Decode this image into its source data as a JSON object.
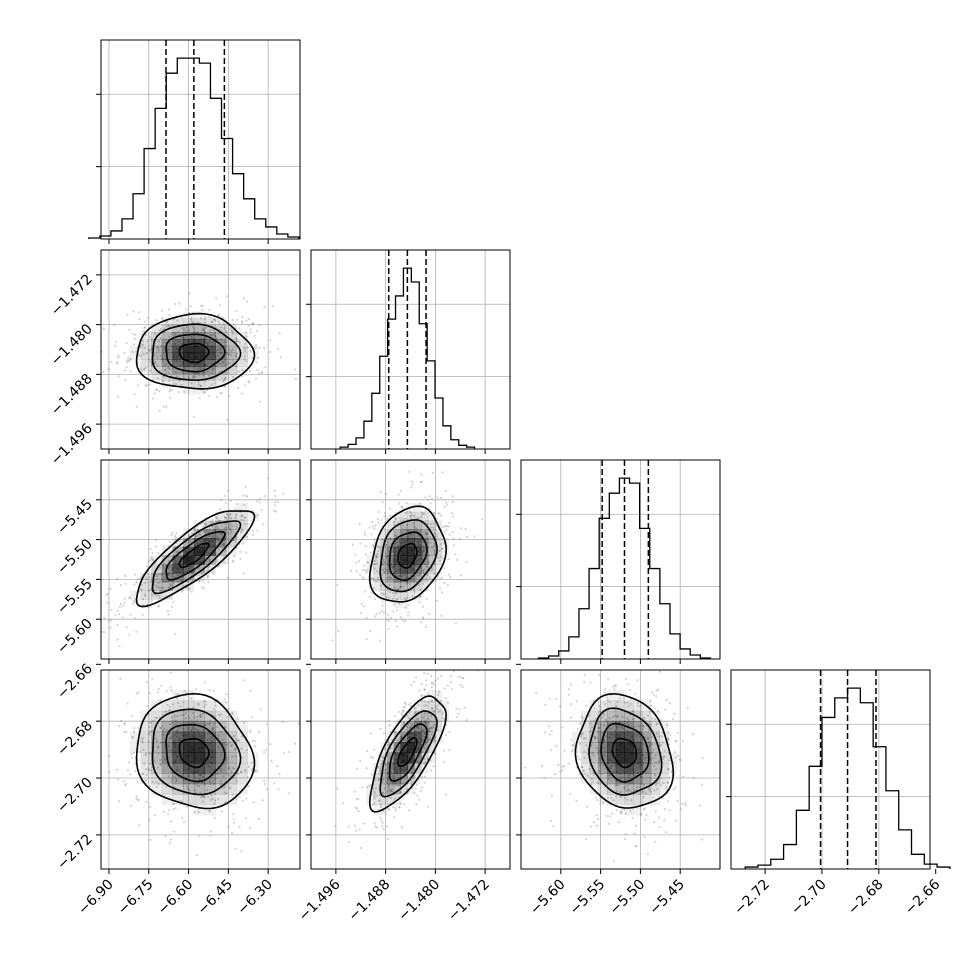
{
  "figure": {
    "kind": "corner-plot",
    "background": "#ffffff",
    "ink_color": "#000000",
    "grid_color": "#b0b0b0",
    "density_color": "#000000",
    "scatter_color": "#808080"
  },
  "chart_data": {
    "type": "corner",
    "title": "",
    "parameters": [
      {
        "index": 0,
        "median": -6.58,
        "q16": -6.685,
        "q84": -6.465,
        "sigma": 0.11,
        "range": [
          -6.93,
          -6.18
        ],
        "ticks": [
          -6.9,
          -6.75,
          -6.6,
          -6.45,
          -6.3
        ],
        "tick_labels": [
          "−6.90",
          "−6.75",
          "−6.60",
          "−6.45",
          "−6.30"
        ]
      },
      {
        "index": 1,
        "median": -1.4845,
        "q16": -1.4875,
        "q84": -1.4815,
        "sigma": 0.003,
        "range": [
          -1.5,
          -1.468
        ],
        "ticks": [
          -1.496,
          -1.488,
          -1.48,
          -1.472
        ],
        "tick_labels": [
          "−1.496",
          "−1.488",
          "−1.480",
          "−1.472"
        ]
      },
      {
        "index": 2,
        "median": -5.52,
        "q16": -5.548,
        "q84": -5.49,
        "sigma": 0.03,
        "range": [
          -5.65,
          -5.4
        ],
        "ticks": [
          -5.6,
          -5.55,
          -5.5,
          -5.45
        ],
        "tick_labels": [
          "−5.60",
          "−5.55",
          "−5.50",
          "−5.45"
        ]
      },
      {
        "index": 3,
        "median": -2.691,
        "q16": -2.7005,
        "q84": -2.681,
        "sigma": 0.01,
        "range": [
          -2.732,
          -2.662
        ],
        "ticks": [
          -2.72,
          -2.7,
          -2.68,
          -2.66
        ],
        "tick_labels": [
          "−2.72",
          "−2.70",
          "−2.68",
          "−2.66"
        ]
      }
    ],
    "histograms": [
      {
        "param": 0,
        "counts": [
          1,
          3,
          8,
          20,
          45,
          90,
          130,
          165,
          180,
          180,
          175,
          140,
          100,
          65,
          40,
          20,
          12,
          5,
          2
        ]
      },
      {
        "param": 1,
        "counts": [
          2,
          5,
          12,
          30,
          60,
          100,
          140,
          165,
          195,
          180,
          135,
          95,
          55,
          25,
          10,
          4,
          2
        ]
      },
      {
        "param": 2,
        "counts": [
          1,
          3,
          8,
          22,
          50,
          90,
          140,
          165,
          180,
          175,
          130,
          90,
          55,
          25,
          10,
          4,
          1
        ]
      },
      {
        "param": 3,
        "counts": [
          2,
          4,
          10,
          25,
          60,
          105,
          155,
          175,
          185,
          170,
          125,
          80,
          40,
          15,
          5,
          2
        ]
      }
    ],
    "pairs": [
      {
        "x": 0,
        "y": 1,
        "correlation": 0.0
      },
      {
        "x": 0,
        "y": 2,
        "correlation": 0.82
      },
      {
        "x": 1,
        "y": 2,
        "correlation": 0.25
      },
      {
        "x": 0,
        "y": 3,
        "correlation": -0.12
      },
      {
        "x": 1,
        "y": 3,
        "correlation": 0.72
      },
      {
        "x": 2,
        "y": 3,
        "correlation": -0.15
      }
    ],
    "quantile_lines": "dashed",
    "contour_levels": [
      0.5,
      1.0,
      1.5,
      2.0
    ],
    "grid": true
  }
}
